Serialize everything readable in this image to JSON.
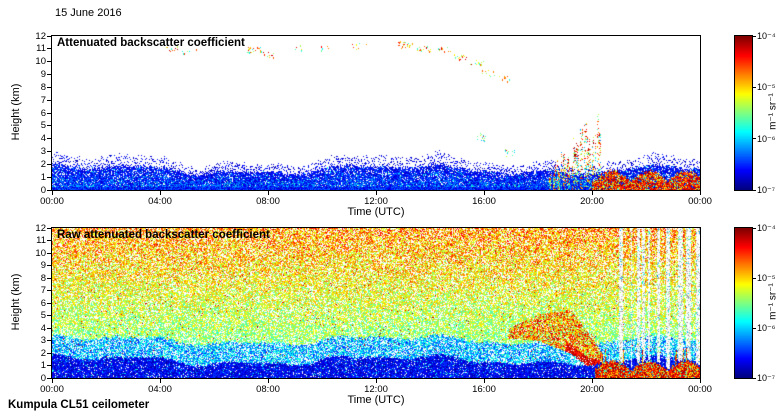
{
  "page": {
    "date_label": "15 June 2016",
    "footer_label": "Kumpula CL51 ceilometer"
  },
  "chart_data": [
    {
      "type": "heatmap",
      "title": "Attenuated backscatter coefficient",
      "xlabel": "Time (UTC)",
      "ylabel": "Height (km)",
      "x_tick_labels": [
        "00:00",
        "04:00",
        "08:00",
        "12:00",
        "16:00",
        "20:00",
        "00:00"
      ],
      "x_tick_hours": [
        0,
        4,
        8,
        12,
        16,
        20,
        24
      ],
      "y_tick_labels": [
        "0",
        "1",
        "2",
        "3",
        "4",
        "5",
        "6",
        "7",
        "8",
        "9",
        "10",
        "11",
        "12"
      ],
      "x_range_hours": [
        0,
        24
      ],
      "y_range_km": [
        0,
        12
      ],
      "colormap": "jet",
      "grid": false,
      "colorbar": {
        "unit_label": "m⁻¹ sr⁻¹",
        "tick_labels": [
          "10⁻⁴",
          "10⁻⁵",
          "10⁻⁶",
          "10⁻⁷"
        ],
        "scale_min": 1e-07,
        "scale_max": 0.0001
      },
      "features": {
        "boundary_layer": {
          "time_h": [
            0,
            24
          ],
          "top_km_mean": 1.7,
          "color": "dark blue speckle"
        },
        "cirrus_clusters": [
          [
            4.5,
            11.0,
            10
          ],
          [
            5.1,
            10.7,
            6
          ],
          [
            7.5,
            10.9,
            26
          ],
          [
            8.1,
            10.5,
            10
          ],
          [
            9.0,
            11.1,
            6
          ],
          [
            10.2,
            11.0,
            5
          ],
          [
            11.4,
            11.2,
            7
          ],
          [
            13.1,
            11.3,
            22
          ],
          [
            13.8,
            11.0,
            16
          ],
          [
            14.5,
            10.9,
            10
          ],
          [
            15.1,
            10.3,
            18
          ],
          [
            15.7,
            9.9,
            12
          ],
          [
            16.2,
            9.1,
            10
          ],
          [
            16.7,
            8.6,
            8
          ]
        ],
        "mid_clouds": [
          [
            15.9,
            4.1,
            16
          ],
          [
            17.0,
            2.9,
            12
          ]
        ],
        "precip_streaks": {
          "time_h": [
            18.4,
            20.3
          ],
          "top_km": [
            2,
            6
          ]
        },
        "surface_rain": {
          "time_h": [
            20,
            24
          ],
          "top_km": [
            0.5,
            1.6
          ],
          "color": "red-orange"
        }
      }
    },
    {
      "type": "heatmap",
      "title": "Raw attenuated backscatter coefficient",
      "xlabel": "Time (UTC)",
      "ylabel": "Height (km)",
      "x_tick_labels": [
        "00:00",
        "04:00",
        "08:00",
        "12:00",
        "16:00",
        "20:00",
        "00:00"
      ],
      "x_tick_hours": [
        0,
        4,
        8,
        12,
        16,
        20,
        24
      ],
      "y_tick_labels": [
        "0",
        "1",
        "2",
        "3",
        "4",
        "5",
        "6",
        "7",
        "8",
        "9",
        "10",
        "11",
        "12"
      ],
      "x_range_hours": [
        0,
        24
      ],
      "y_range_km": [
        0,
        12
      ],
      "colormap": "jet",
      "grid": false,
      "colorbar": {
        "unit_label": "m⁻¹ sr⁻¹",
        "tick_labels": [
          "10⁻⁴",
          "10⁻⁵",
          "10⁻⁶",
          "10⁻⁷"
        ],
        "scale_min": 1e-07,
        "scale_max": 0.0001
      },
      "features": {
        "background_noise": {
          "time_h": [
            0,
            24
          ],
          "height_km": [
            0,
            12
          ],
          "color": "green-yellow speckle, warmer aloft"
        },
        "boundary_layer": {
          "time_h": [
            0,
            24
          ],
          "top_km_mean": 1.7,
          "color": "dark blue"
        },
        "cloud_band": {
          "time_h": [
            16.9,
            20.4
          ],
          "height_km": [
            1,
            5.6
          ],
          "color": "green-yellow with red base"
        },
        "surface_rain": {
          "time_h": [
            20,
            24
          ],
          "top_km": [
            0.5,
            1.6
          ],
          "color": "red-orange"
        },
        "attenuated_columns": {
          "time_h": [
            20.6,
            24
          ],
          "color": "grey-white vertical stripes"
        }
      }
    }
  ]
}
